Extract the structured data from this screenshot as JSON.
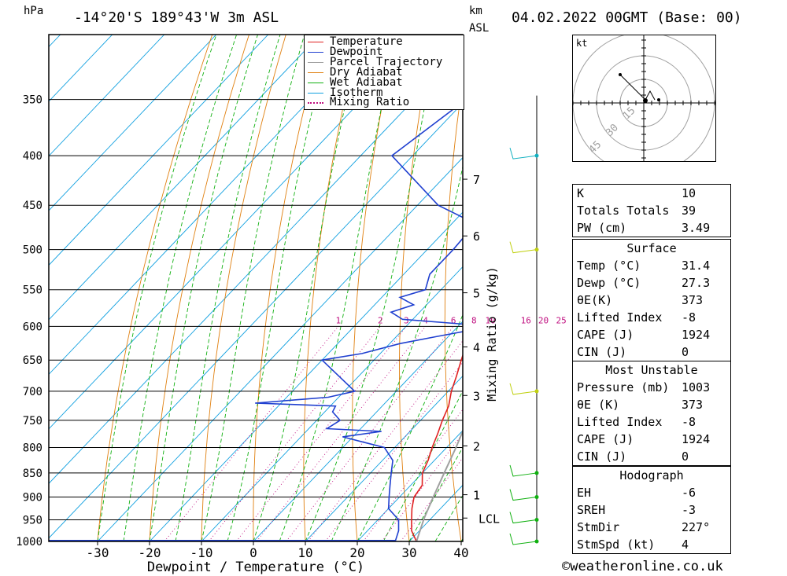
{
  "header": {
    "hpa_label": "hPa",
    "location": "-14°20'S 189°43'W 3m ASL",
    "km_label": "km",
    "asl_label": "ASL",
    "datetime": "04.02.2022 00GMT (Base: 00)"
  },
  "footer": {
    "copyright": "©weatheronline.co.uk"
  },
  "legend": {
    "items": [
      {
        "label": "Temperature",
        "color": "#e02020"
      },
      {
        "label": "Dewpoint",
        "color": "#2040d0"
      },
      {
        "label": "Parcel Trajectory",
        "color": "#a0a0a0"
      },
      {
        "label": "Dry Adiabat",
        "color": "#e08010"
      },
      {
        "label": "Wet Adiabat",
        "color": "#10b010"
      },
      {
        "label": "Isotherm",
        "color": "#10a0e0"
      },
      {
        "label": "Mixing Ratio",
        "color": "#c01080",
        "dotted": true
      }
    ]
  },
  "chart_data": {
    "type": "line",
    "title": "-14°20'S 189°43'W 3m ASL",
    "xlabel": "Dewpoint / Temperature (°C)",
    "ylabel": "hPa",
    "y2label": "Mixing Ratio (g/kg)",
    "xlim": [
      -40,
      40
    ],
    "ylim": [
      1000,
      300
    ],
    "x_ticks": [
      -30,
      -20,
      -10,
      0,
      10,
      20,
      30,
      40
    ],
    "pressure_ticks": [
      350,
      400,
      450,
      500,
      550,
      600,
      650,
      700,
      750,
      800,
      850,
      900,
      950,
      1000
    ],
    "km_ticks": [
      {
        "label": "7",
        "p": 423
      },
      {
        "label": "6",
        "p": 484
      },
      {
        "label": "5",
        "p": 554
      },
      {
        "label": "4",
        "p": 630
      },
      {
        "label": "3",
        "p": 707
      },
      {
        "label": "2",
        "p": 797
      },
      {
        "label": "1",
        "p": 895
      },
      {
        "label": "LCL",
        "p": 946
      }
    ],
    "mixing_ratio_labels": [
      "1",
      "2",
      "3",
      "4",
      "6",
      "8",
      "10",
      "16",
      "20",
      "25"
    ],
    "series": [
      {
        "name": "Temperature",
        "color": "#e02020",
        "points": [
          {
            "p": 1000,
            "t": 31.4
          },
          {
            "p": 975,
            "t": 28.5
          },
          {
            "p": 950,
            "t": 26.5
          },
          {
            "p": 925,
            "t": 24.5
          },
          {
            "p": 900,
            "t": 22.8
          },
          {
            "p": 875,
            "t": 22.2
          },
          {
            "p": 850,
            "t": 20.0
          },
          {
            "p": 825,
            "t": 18.8
          },
          {
            "p": 800,
            "t": 17.2
          },
          {
            "p": 775,
            "t": 15.8
          },
          {
            "p": 750,
            "t": 14.2
          },
          {
            "p": 725,
            "t": 12.8
          },
          {
            "p": 700,
            "t": 10.6
          },
          {
            "p": 675,
            "t": 8.8
          },
          {
            "p": 650,
            "t": 6.8
          },
          {
            "p": 625,
            "t": 4.8
          },
          {
            "p": 600,
            "t": 2.8
          },
          {
            "p": 575,
            "t": 1.0
          },
          {
            "p": 550,
            "t": -1.2
          },
          {
            "p": 525,
            "t": -3.2
          },
          {
            "p": 500,
            "t": -5.8
          },
          {
            "p": 475,
            "t": -8.5
          },
          {
            "p": 450,
            "t": -11.0
          },
          {
            "p": 425,
            "t": -13.8
          },
          {
            "p": 400,
            "t": -16.8
          },
          {
            "p": 375,
            "t": -19.5
          },
          {
            "p": 350,
            "t": -22.5
          }
        ]
      },
      {
        "name": "Dewpoint",
        "color": "#2040d0",
        "points": [
          {
            "p": 1000,
            "t": 27.3
          },
          {
            "p": 975,
            "t": 26.0
          },
          {
            "p": 950,
            "t": 24.0
          },
          {
            "p": 925,
            "t": 20.0
          },
          {
            "p": 900,
            "t": 18.0
          },
          {
            "p": 875,
            "t": 16.0
          },
          {
            "p": 850,
            "t": 14.0
          },
          {
            "p": 825,
            "t": 12.0
          },
          {
            "p": 800,
            "t": 8.0
          },
          {
            "p": 790,
            "t": 3.0
          },
          {
            "p": 780,
            "t": -2.0
          },
          {
            "p": 770,
            "t": 4.5
          },
          {
            "p": 765,
            "t": -6.5
          },
          {
            "p": 750,
            "t": -5.5
          },
          {
            "p": 735,
            "t": -8.5
          },
          {
            "p": 725,
            "t": -9.0
          },
          {
            "p": 720,
            "t": -25.0
          },
          {
            "p": 710,
            "t": -12.0
          },
          {
            "p": 700,
            "t": -8.0
          },
          {
            "p": 650,
            "t": -20.0
          },
          {
            "p": 640,
            "t": -13.5
          },
          {
            "p": 625,
            "t": -8.0
          },
          {
            "p": 615,
            "t": -2.5
          },
          {
            "p": 600,
            "t": 6.5
          },
          {
            "p": 590,
            "t": -12.0
          },
          {
            "p": 580,
            "t": -15.5
          },
          {
            "p": 570,
            "t": -12.5
          },
          {
            "p": 560,
            "t": -16.5
          },
          {
            "p": 550,
            "t": -13.0
          },
          {
            "p": 530,
            "t": -15.0
          },
          {
            "p": 500,
            "t": -15.0
          },
          {
            "p": 470,
            "t": -15.5
          },
          {
            "p": 450,
            "t": -26.0
          },
          {
            "p": 400,
            "t": -44.0
          },
          {
            "p": 350,
            "t": -40.0
          },
          {
            "p": 300,
            "t": -38.0
          }
        ]
      },
      {
        "name": "Parcel Trajectory",
        "color": "#a0a0a0",
        "points": [
          {
            "p": 1000,
            "t": 31.4
          },
          {
            "p": 946,
            "t": 28.6
          },
          {
            "p": 900,
            "t": 26.5
          },
          {
            "p": 850,
            "t": 24.2
          },
          {
            "p": 800,
            "t": 21.8
          },
          {
            "p": 750,
            "t": 19.0
          },
          {
            "p": 700,
            "t": 16.0
          },
          {
            "p": 650,
            "t": 12.8
          },
          {
            "p": 600,
            "t": 9.4
          },
          {
            "p": 550,
            "t": 5.6
          },
          {
            "p": 500,
            "t": 1.4
          },
          {
            "p": 450,
            "t": -3.5
          },
          {
            "p": 400,
            "t": -9.2
          },
          {
            "p": 360,
            "t": -14.5
          }
        ]
      }
    ]
  },
  "hodograph": {
    "unit_label": "kt",
    "ring_labels": [
      "15",
      "30",
      "45"
    ]
  },
  "wind_profile": {
    "barbs_p": [
      1000,
      950,
      900,
      850,
      700,
      500,
      400
    ]
  },
  "stats": {
    "indices": [
      {
        "label": "K",
        "value": "10"
      },
      {
        "label": "Totals Totals",
        "value": "39"
      },
      {
        "label": "PW (cm)",
        "value": "3.49"
      }
    ],
    "surface": {
      "title": "Surface",
      "rows": [
        {
          "label": "Temp (°C)",
          "value": "31.4"
        },
        {
          "label": "Dewp (°C)",
          "value": "27.3"
        },
        {
          "label": "θE(K)",
          "value": "373"
        },
        {
          "label": "Lifted Index",
          "value": "-8"
        },
        {
          "label": "CAPE (J)",
          "value": "1924"
        },
        {
          "label": "CIN (J)",
          "value": "0"
        }
      ]
    },
    "most_unstable": {
      "title": "Most Unstable",
      "rows": [
        {
          "label": "Pressure (mb)",
          "value": "1003"
        },
        {
          "label": "θE (K)",
          "value": "373"
        },
        {
          "label": "Lifted Index",
          "value": "-8"
        },
        {
          "label": "CAPE (J)",
          "value": "1924"
        },
        {
          "label": "CIN (J)",
          "value": "0"
        }
      ]
    },
    "hodograph": {
      "title": "Hodograph",
      "rows": [
        {
          "label": "EH",
          "value": "-6"
        },
        {
          "label": "SREH",
          "value": "-3"
        },
        {
          "label": "StmDir",
          "value": "227°"
        },
        {
          "label": "StmSpd (kt)",
          "value": "4"
        }
      ]
    }
  }
}
